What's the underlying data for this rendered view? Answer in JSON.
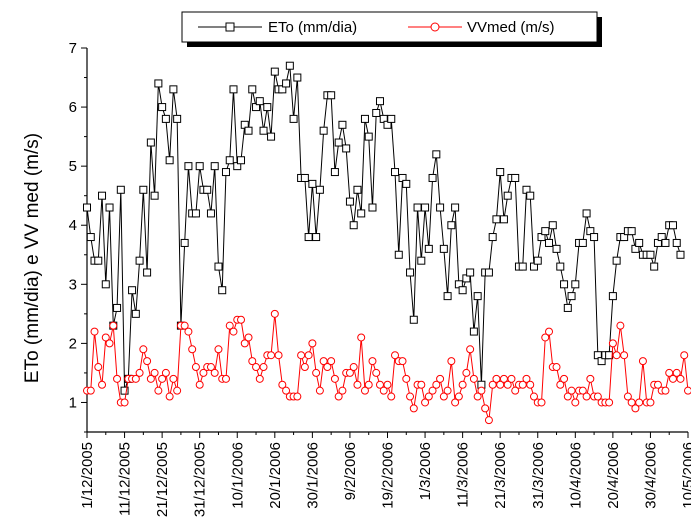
{
  "chart_data": {
    "type": "line",
    "title": "",
    "xlabel": "",
    "ylabel": "ETo (mm/dia) e VV med (m/s)",
    "ylim": [
      0.5,
      7
    ],
    "yticks": [
      "1",
      "2",
      "3",
      "4",
      "5",
      "6",
      "7"
    ],
    "xlim": [
      "1/12/2005",
      "10/5/2006"
    ],
    "xticks": [
      "1/12/2005",
      "11/12/2005",
      "21/12/2005",
      "31/12/2005",
      "10/1/2006",
      "20/1/2006",
      "30/1/2006",
      "9/2/2006",
      "19/2/2006",
      "1/3/2006",
      "11/3/2006",
      "21/3/2006",
      "31/3/2006",
      "10/4/2006",
      "20/4/2006",
      "30/4/2006",
      "10/5/2006"
    ],
    "legend_position": "top",
    "grid": false,
    "series": [
      {
        "name": "ETo (mm/dia)",
        "color": "#000000",
        "marker": "square",
        "values": [
          4.3,
          3.8,
          3.4,
          3.4,
          4.5,
          3.0,
          4.3,
          2.3,
          2.6,
          4.6,
          1.2,
          1.4,
          2.9,
          2.5,
          3.4,
          4.6,
          3.2,
          5.4,
          4.5,
          6.4,
          6.0,
          5.8,
          5.1,
          6.3,
          5.8,
          2.3,
          3.7,
          5.0,
          4.2,
          4.2,
          5.0,
          4.6,
          4.6,
          4.2,
          5.0,
          3.3,
          2.9,
          4.9,
          5.1,
          6.3,
          5.0,
          5.1,
          5.7,
          5.6,
          6.3,
          6.0,
          6.1,
          5.6,
          6.0,
          5.5,
          6.6,
          6.3,
          6.3,
          6.4,
          6.7,
          5.8,
          6.5,
          4.8,
          4.8,
          3.8,
          4.7,
          3.8,
          4.6,
          5.6,
          6.2,
          6.2,
          4.9,
          5.4,
          5.7,
          5.3,
          4.4,
          4.0,
          4.6,
          4.2,
          5.8,
          5.5,
          4.3,
          5.9,
          6.1,
          5.8,
          5.7,
          5.8,
          4.9,
          3.5,
          4.8,
          4.7,
          3.2,
          2.4,
          4.3,
          3.4,
          4.3,
          3.6,
          4.8,
          5.2,
          4.3,
          3.6,
          2.8,
          4.0,
          4.3,
          3.0,
          2.9,
          3.1,
          3.2,
          2.2,
          2.8,
          1.3,
          3.2,
          3.2,
          3.8,
          4.1,
          4.9,
          4.1,
          4.5,
          4.8,
          4.8,
          3.3,
          3.3,
          4.6,
          4.5,
          3.3,
          3.4,
          3.8,
          3.9,
          3.7,
          4.0,
          3.6,
          3.3,
          3.0,
          2.6,
          2.8,
          3.0,
          3.7,
          3.7,
          4.2,
          3.9,
          3.8,
          1.8,
          1.7,
          1.8,
          1.8,
          2.8,
          3.4,
          3.8,
          3.8,
          3.9,
          3.9,
          3.6,
          3.7,
          3.5,
          3.5,
          3.5,
          3.3,
          3.7,
          3.8,
          3.7,
          4.0,
          4.0,
          3.7,
          3.5
        ]
      },
      {
        "name": "VVmed (m/s)",
        "color": "#ff0000",
        "marker": "circle",
        "values": [
          1.2,
          1.2,
          2.2,
          1.6,
          1.3,
          2.1,
          2.0,
          2.3,
          1.4,
          1.0,
          1.0,
          1.4,
          1.4,
          1.4,
          1.5,
          1.9,
          1.7,
          1.4,
          1.5,
          1.2,
          1.4,
          1.5,
          1.1,
          1.4,
          1.2,
          2.3,
          2.3,
          2.2,
          1.9,
          1.6,
          1.3,
          1.5,
          1.6,
          1.6,
          1.5,
          1.9,
          1.4,
          1.4,
          2.3,
          2.2,
          2.4,
          2.4,
          2.0,
          2.1,
          1.7,
          1.6,
          1.4,
          1.6,
          1.8,
          1.8,
          2.5,
          1.8,
          1.3,
          1.2,
          1.1,
          1.1,
          1.1,
          1.8,
          1.6,
          1.8,
          2.0,
          1.5,
          1.2,
          1.7,
          1.6,
          1.7,
          1.4,
          1.1,
          1.2,
          1.5,
          1.5,
          1.6,
          1.3,
          2.1,
          1.2,
          1.3,
          1.7,
          1.5,
          1.3,
          1.2,
          1.3,
          1.1,
          1.8,
          1.7,
          1.7,
          1.4,
          1.1,
          0.9,
          1.3,
          1.3,
          1.0,
          1.1,
          1.2,
          1.3,
          1.4,
          1.1,
          1.2,
          1.7,
          1.0,
          1.1,
          1.3,
          1.5,
          1.9,
          1.4,
          1.1,
          1.2,
          0.9,
          0.7,
          1.3,
          1.4,
          1.3,
          1.4,
          1.3,
          1.4,
          1.2,
          1.3,
          1.3,
          1.4,
          1.3,
          1.1,
          1.0,
          1.0,
          2.1,
          2.2,
          1.6,
          1.6,
          1.3,
          1.4,
          1.1,
          1.2,
          1.0,
          1.2,
          1.2,
          1.1,
          1.4,
          1.1,
          1.1,
          1.0,
          1.0,
          1.0,
          2.0,
          1.8,
          2.3,
          1.8,
          1.1,
          1.0,
          0.9,
          1.0,
          1.7,
          1.0,
          1.0,
          1.3,
          1.3,
          1.2,
          1.2,
          1.5,
          1.4,
          1.5,
          1.4,
          1.8,
          1.2
        ]
      }
    ]
  }
}
